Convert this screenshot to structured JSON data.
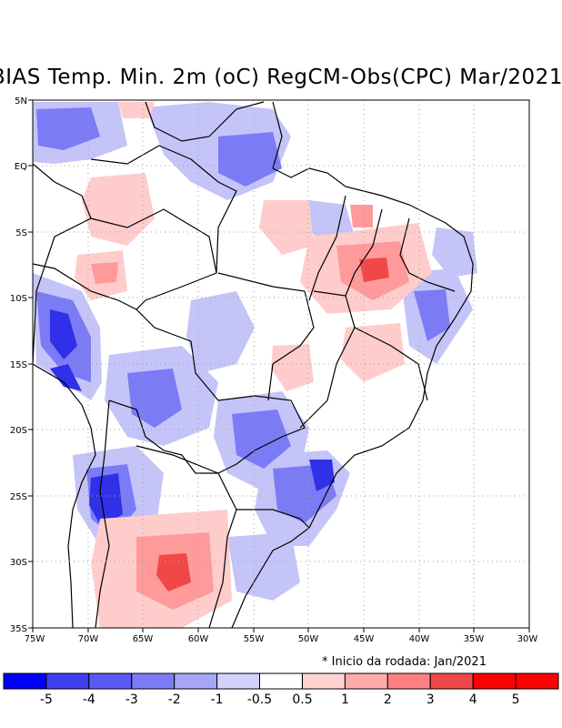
{
  "title": "BIAS Temp. Min. 2m (oC) RegCM-Obs(CPC) Mar/2021",
  "axes": {
    "lat_labels": [
      "5N",
      "EQ",
      "5S",
      "10S",
      "15S",
      "20S",
      "25S",
      "30S",
      "35S"
    ],
    "lon_labels": [
      "75W",
      "70W",
      "65W",
      "60W",
      "55W",
      "50W",
      "45W",
      "40W",
      "35W",
      "30W"
    ]
  },
  "note": "* Inicio da rodada: Jan/2021",
  "colorbar": {
    "labels": [
      "-5",
      "-4",
      "-3",
      "-2",
      "-1",
      "-0.5",
      "0.5",
      "1",
      "2",
      "3",
      "4",
      "5"
    ],
    "colors": [
      "#0000ff",
      "#3f3ff0",
      "#5a5af5",
      "#7b7bf6",
      "#a6a6f8",
      "#d2d2fb",
      "#ffffff",
      "#ffd2d2",
      "#ffaaaa",
      "#ff8080",
      "#f04848",
      "#ff0000"
    ]
  },
  "colors": {
    "neg_strong": "#3030e8",
    "neg_mid": "#7b7bf6",
    "neg_light": "#c4c4f8",
    "pos_light": "#ffcccc",
    "pos_mid": "#ff9a9a",
    "pos_strong": "#f04848"
  }
}
